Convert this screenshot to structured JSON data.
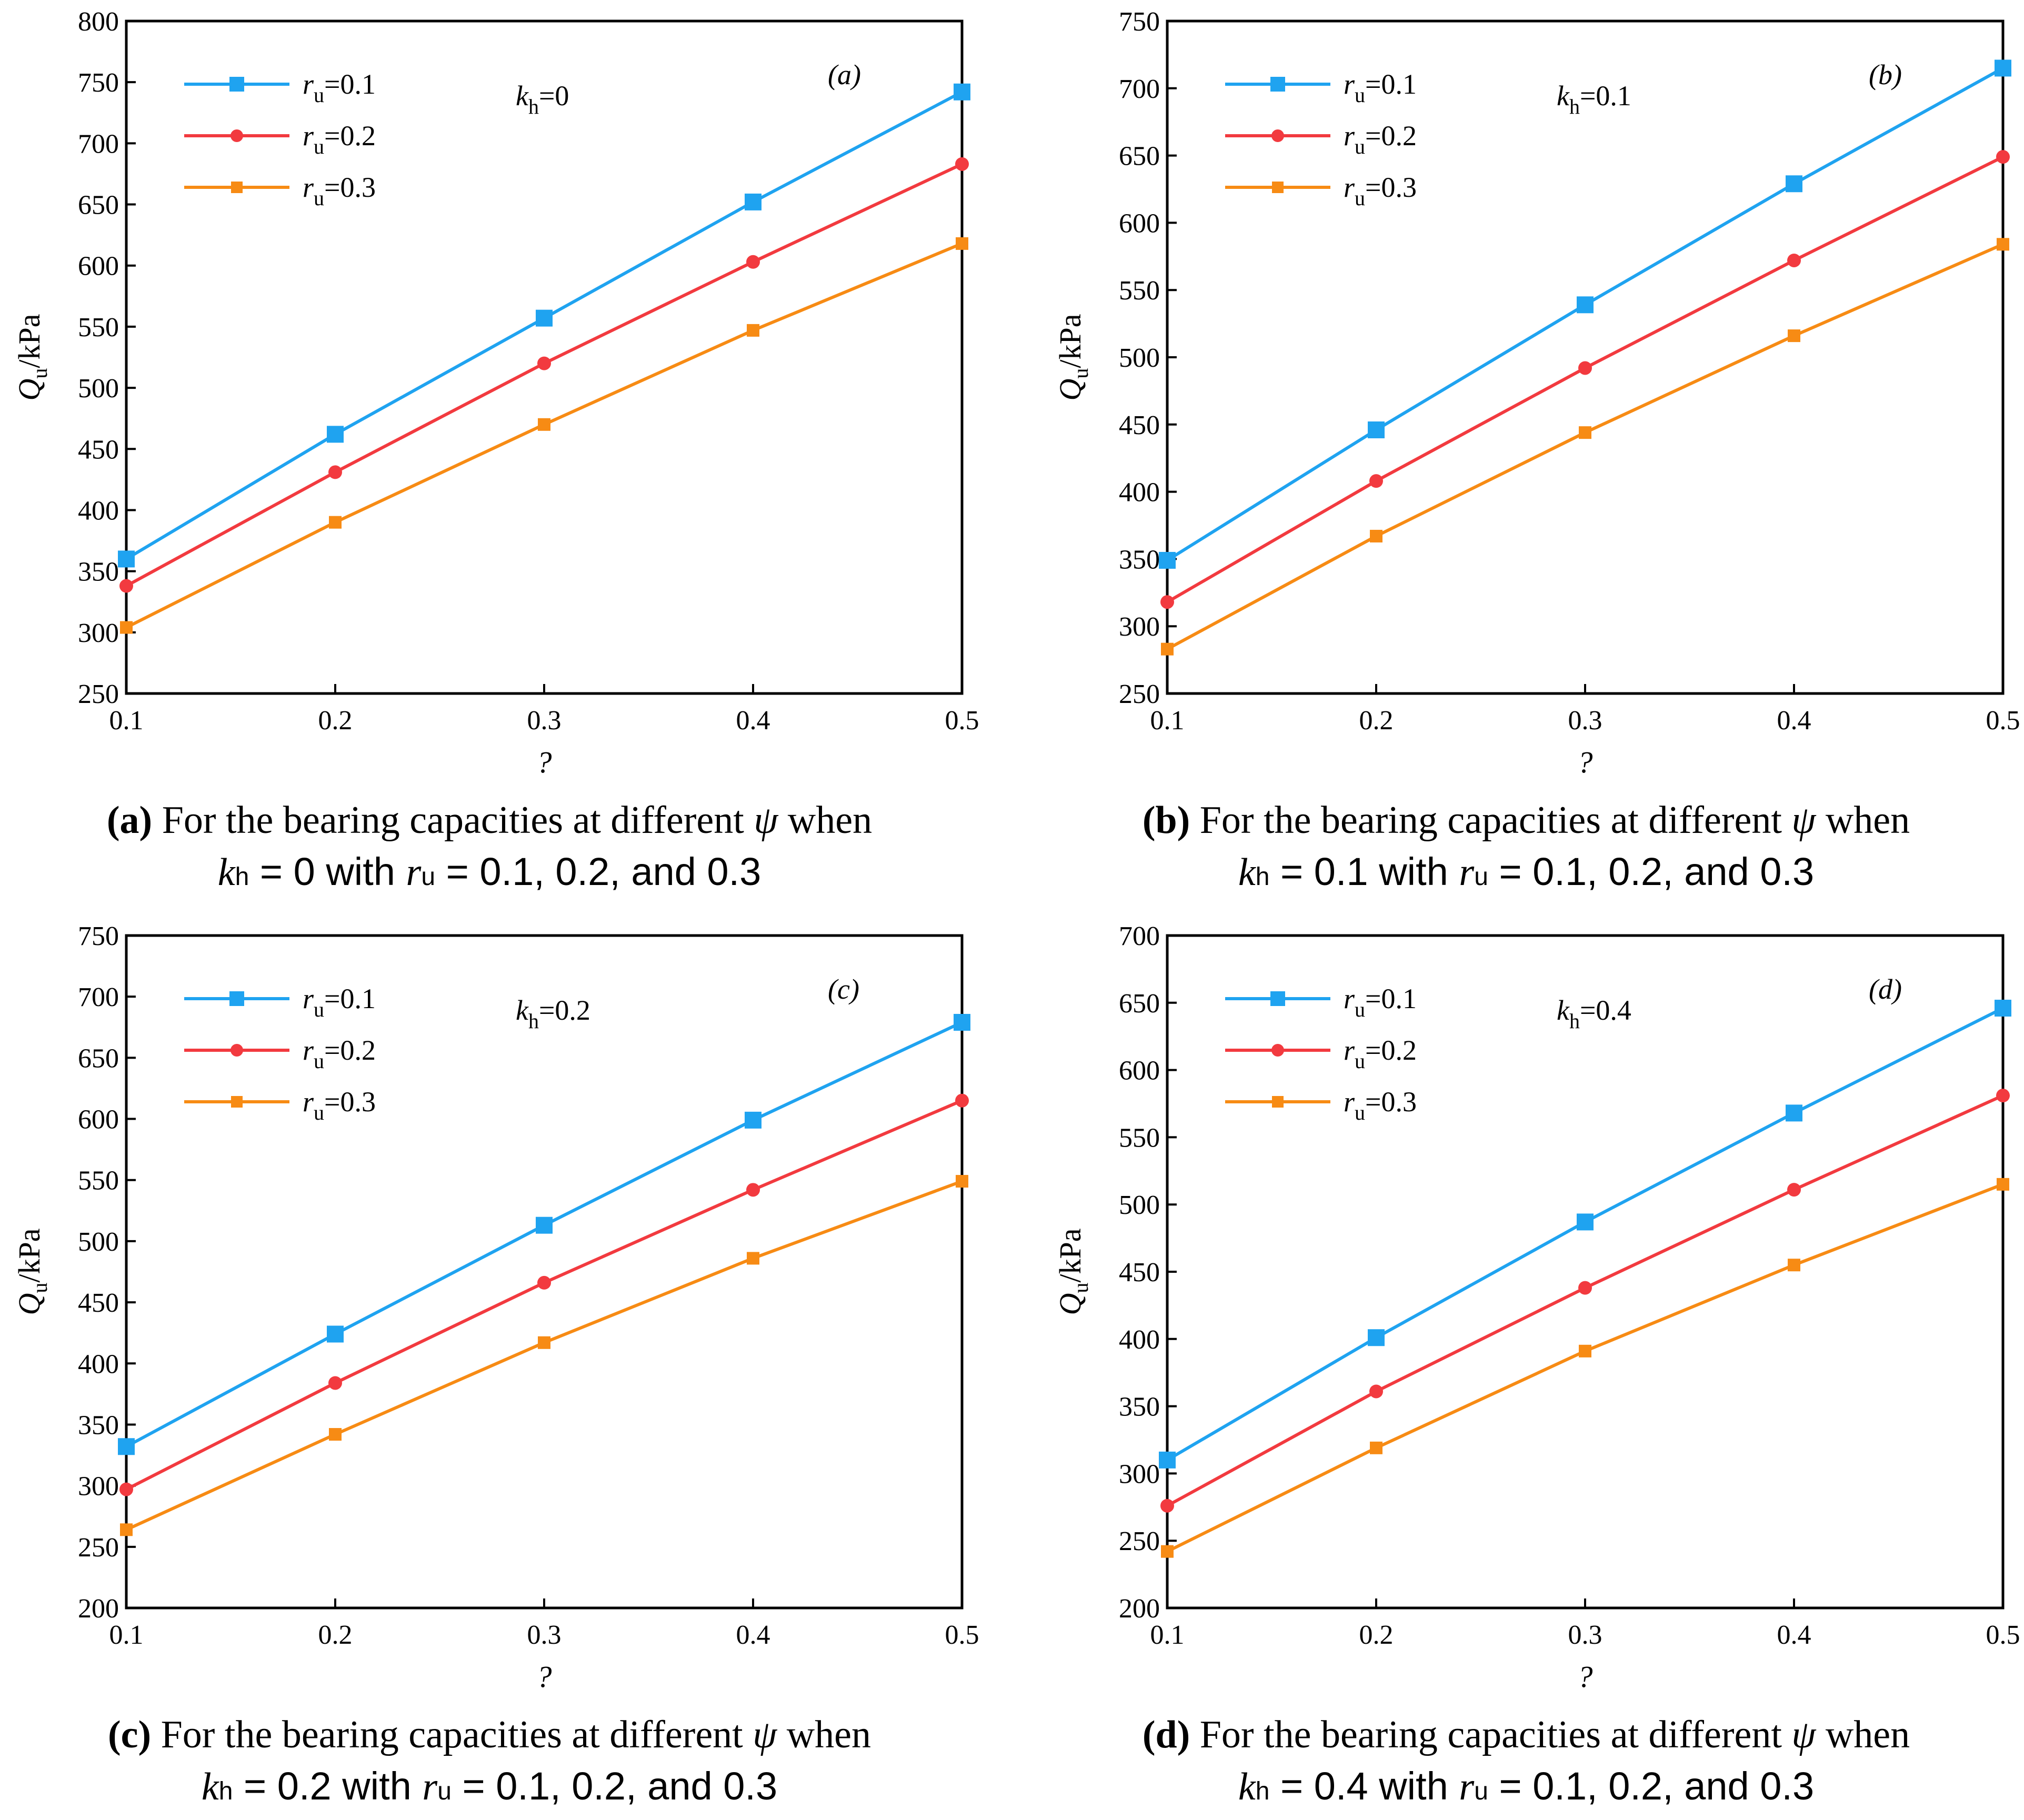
{
  "colors": {
    "ru01": "#1fa3f0",
    "ru02": "#f23a3f",
    "ru03": "#f78b14",
    "axis": "#000000"
  },
  "chart_data": [
    {
      "type": "line",
      "panel": "a",
      "panel_label": "(a)",
      "kh_label": "k",
      "kh_sub": "h",
      "kh_value": "=0",
      "x": [
        0.1,
        0.2,
        0.3,
        0.4,
        0.5
      ],
      "x_tick_labels": [
        "0.1",
        "0.2",
        "0.3",
        "0.4",
        "0.5"
      ],
      "xlabel": "?",
      "ylabel": "Q",
      "ylabel_sub": "u",
      "ylabel_unit": "/kPa",
      "ylim": [
        250,
        800
      ],
      "y_ticks": [
        250,
        300,
        350,
        400,
        450,
        500,
        550,
        600,
        650,
        700,
        750,
        800
      ],
      "series": [
        {
          "name": "r",
          "sub": "u",
          "value": "=0.1",
          "marker": "square",
          "color": "#1fa3f0",
          "values": [
            360,
            462,
            557,
            652,
            742
          ]
        },
        {
          "name": "r",
          "sub": "u",
          "value": "=0.2",
          "marker": "circle",
          "color": "#f23a3f",
          "values": [
            338,
            431,
            520,
            603,
            683
          ]
        },
        {
          "name": "r",
          "sub": "u",
          "value": "=0.3",
          "marker": "smallsquare",
          "color": "#f78b14",
          "values": [
            304,
            390,
            470,
            547,
            618
          ]
        }
      ]
    },
    {
      "type": "line",
      "panel": "b",
      "panel_label": "(b)",
      "kh_label": "k",
      "kh_sub": "h",
      "kh_value": "=0.1",
      "x": [
        0.1,
        0.2,
        0.3,
        0.4,
        0.5
      ],
      "x_tick_labels": [
        "0.1",
        "0.2",
        "0.3",
        "0.4",
        "0.5"
      ],
      "xlabel": "?",
      "ylabel": "Q",
      "ylabel_sub": "u",
      "ylabel_unit": "/kPa",
      "ylim": [
        250,
        750
      ],
      "y_ticks": [
        250,
        300,
        350,
        400,
        450,
        500,
        550,
        600,
        650,
        700,
        750
      ],
      "series": [
        {
          "name": "r",
          "sub": "u",
          "value": "=0.1",
          "marker": "square",
          "color": "#1fa3f0",
          "values": [
            349,
            446,
            539,
            629,
            715
          ]
        },
        {
          "name": "r",
          "sub": "u",
          "value": "=0.2",
          "marker": "circle",
          "color": "#f23a3f",
          "values": [
            318,
            408,
            492,
            572,
            649
          ]
        },
        {
          "name": "r",
          "sub": "u",
          "value": "=0.3",
          "marker": "smallsquare",
          "color": "#f78b14",
          "values": [
            283,
            367,
            444,
            516,
            584
          ]
        }
      ]
    },
    {
      "type": "line",
      "panel": "c",
      "panel_label": "(c)",
      "kh_label": "k",
      "kh_sub": "h",
      "kh_value": "=0.2",
      "x": [
        0.1,
        0.2,
        0.3,
        0.4,
        0.5
      ],
      "x_tick_labels": [
        "0.1",
        "0.2",
        "0.3",
        "0.4",
        "0.5"
      ],
      "xlabel": "?",
      "ylabel": "Q",
      "ylabel_sub": "u",
      "ylabel_unit": "/kPa",
      "ylim": [
        200,
        750
      ],
      "y_ticks": [
        200,
        250,
        300,
        350,
        400,
        450,
        500,
        550,
        600,
        650,
        700,
        750
      ],
      "series": [
        {
          "name": "r",
          "sub": "u",
          "value": "=0.1",
          "marker": "square",
          "color": "#1fa3f0",
          "values": [
            332,
            424,
            513,
            599,
            679
          ]
        },
        {
          "name": "r",
          "sub": "u",
          "value": "=0.2",
          "marker": "circle",
          "color": "#f23a3f",
          "values": [
            297,
            384,
            466,
            542,
            615
          ]
        },
        {
          "name": "r",
          "sub": "u",
          "value": "=0.3",
          "marker": "smallsquare",
          "color": "#f78b14",
          "values": [
            264,
            342,
            417,
            486,
            549
          ]
        }
      ]
    },
    {
      "type": "line",
      "panel": "d",
      "panel_label": "(d)",
      "kh_label": "k",
      "kh_sub": "h",
      "kh_value": "=0.4",
      "x": [
        0.1,
        0.2,
        0.3,
        0.4,
        0.5
      ],
      "x_tick_labels": [
        "0.1",
        "0.2",
        "0.3",
        "0.4",
        "0.5"
      ],
      "xlabel": "?",
      "ylabel": "Q",
      "ylabel_sub": "u",
      "ylabel_unit": "/kPa",
      "ylim": [
        200,
        700
      ],
      "y_ticks": [
        200,
        250,
        300,
        350,
        400,
        450,
        500,
        550,
        600,
        650,
        700
      ],
      "series": [
        {
          "name": "r",
          "sub": "u",
          "value": "=0.1",
          "marker": "square",
          "color": "#1fa3f0",
          "values": [
            310,
            401,
            487,
            568,
            646
          ]
        },
        {
          "name": "r",
          "sub": "u",
          "value": "=0.2",
          "marker": "circle",
          "color": "#f23a3f",
          "values": [
            276,
            361,
            438,
            511,
            581
          ]
        },
        {
          "name": "r",
          "sub": "u",
          "value": "=0.3",
          "marker": "smallsquare",
          "color": "#f78b14",
          "values": [
            242,
            319,
            391,
            455,
            515
          ]
        }
      ]
    }
  ],
  "captions": [
    {
      "letter": "(a)",
      "text1": " For the bearing capacities at different ",
      "psi": "ψ",
      "text2": " when",
      "k": "k",
      "ksub": "h",
      "kval": " = 0 with ",
      "r": "r",
      "rsub": "u",
      "rval": " = 0.1, 0.2, and 0.3"
    },
    {
      "letter": "(b)",
      "text1": " For the bearing capacities at different ",
      "psi": "ψ",
      "text2": " when",
      "k": "k",
      "ksub": "h",
      "kval": " = 0.1 with ",
      "r": "r",
      "rsub": "u",
      "rval": " = 0.1, 0.2, and 0.3"
    },
    {
      "letter": "(c)",
      "text1": " For the bearing capacities at different ",
      "psi": "ψ",
      "text2": " when",
      "k": "k",
      "ksub": "h",
      "kval": " = 0.2 with ",
      "r": "r",
      "rsub": "u",
      "rval": " = 0.1, 0.2, and 0.3"
    },
    {
      "letter": "(d)",
      "text1": " For the bearing capacities at different ",
      "psi": "ψ",
      "text2": " when",
      "k": "k",
      "ksub": "h",
      "kval": " = 0.4 with ",
      "r": "r",
      "rsub": "u",
      "rval": " = 0.1, 0.2, and 0.3"
    }
  ]
}
